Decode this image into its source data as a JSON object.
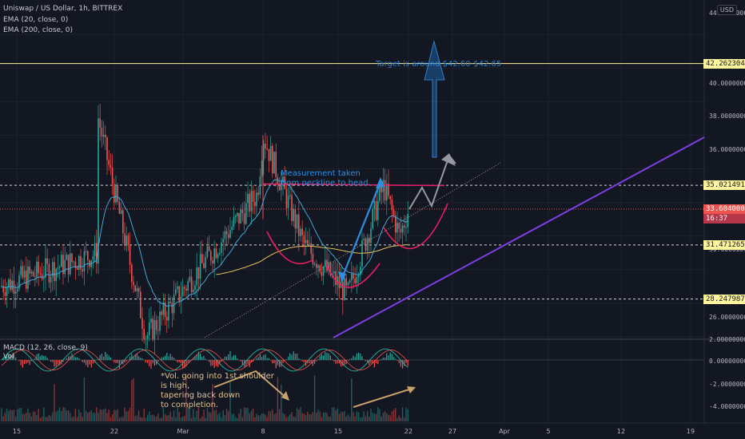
{
  "header": {
    "symbol_line": "Uniswap / US Dollar, 1h, BITTREX",
    "indicator_1": "EMA (20, close, 0)",
    "indicator_2": "EMA (200, close, 0)",
    "currency": "USD"
  },
  "price_axis": {
    "ticks": [
      "44.00000000",
      "40.00000000",
      "38.00000000",
      "36.00000000",
      "34.00000000",
      "32.00000000",
      "30.00000000",
      "26.00000000"
    ],
    "hidden_ticks": [
      "42.00000000",
      "28.00000000"
    ]
  },
  "price_tags": [
    {
      "label": "42.26230406",
      "color": "#fff59d",
      "text_color": "#131722"
    },
    {
      "label": "35.02149161",
      "color": "#fff59d",
      "text_color": "#131722"
    },
    {
      "label": "33.60400000",
      "color": "#ef5350",
      "text_color": "#ffffff"
    },
    {
      "label": "31.47126537",
      "color": "#fff59d",
      "text_color": "#131722"
    },
    {
      "label": "28.24798749",
      "color": "#fff59d",
      "text_color": "#131722"
    }
  ],
  "countdown": "16:37",
  "time_axis": {
    "ticks": [
      "15",
      "22",
      "Mar",
      "8",
      "15",
      "22",
      "27",
      "Apr",
      "5",
      "12",
      "19"
    ]
  },
  "annotations": {
    "target": "Target is around $42.60-$42.65",
    "measurement": "Measurement taken\nfrom neckline to head.",
    "volume_note": "*Vol. going into 1st shoulder\nis high,\ntapering back down\nto completion."
  },
  "macd": {
    "label": "MACD (12, 26, close, 9)",
    "vol_label": "Vol",
    "ticks": [
      "2.00000000",
      "0.00000000",
      "-2.00000000",
      "-4.00000000"
    ]
  },
  "colors": {
    "background": "#131722",
    "up_candle": "#26a69a",
    "down_candle": "#ef5350",
    "ema20": "#3ea6d6",
    "ema200": "#e8c15a",
    "horizontal_levels": "#fff59d",
    "neckline": "#e91e63",
    "channel": "#7b3fe4",
    "projection": "#1e6fbf",
    "macd_line": "#2962ff",
    "signal_line": "#ff9800",
    "volume_arrow": "#c9a26b"
  },
  "chart_data": {
    "type": "candlestick",
    "pair": "UNI/USD",
    "timeframe": "1h",
    "exchange": "BITTREX",
    "y_range": [
      25,
      45
    ],
    "levels": [
      42.26230406,
      35.02149161,
      31.47126537,
      28.24798749
    ],
    "last_price": 33.604,
    "pattern": "inverse head and shoulders",
    "target_range": [
      42.6,
      42.65
    ],
    "key_points": [
      {
        "date": "Feb 19",
        "price": 39
      },
      {
        "date": "Feb 24",
        "price": 26
      },
      {
        "date": "Mar 7",
        "price": 34.5
      },
      {
        "date": "Mar 8",
        "price": 38
      },
      {
        "date": "Mar 11",
        "price": 31.5
      },
      {
        "date": "Mar 16",
        "price": 28.5
      },
      {
        "date": "Mar 19",
        "price": 35.0
      },
      {
        "date": "Mar 21",
        "price": 32
      },
      {
        "date": "Mar 22",
        "price": 33.6
      }
    ]
  }
}
